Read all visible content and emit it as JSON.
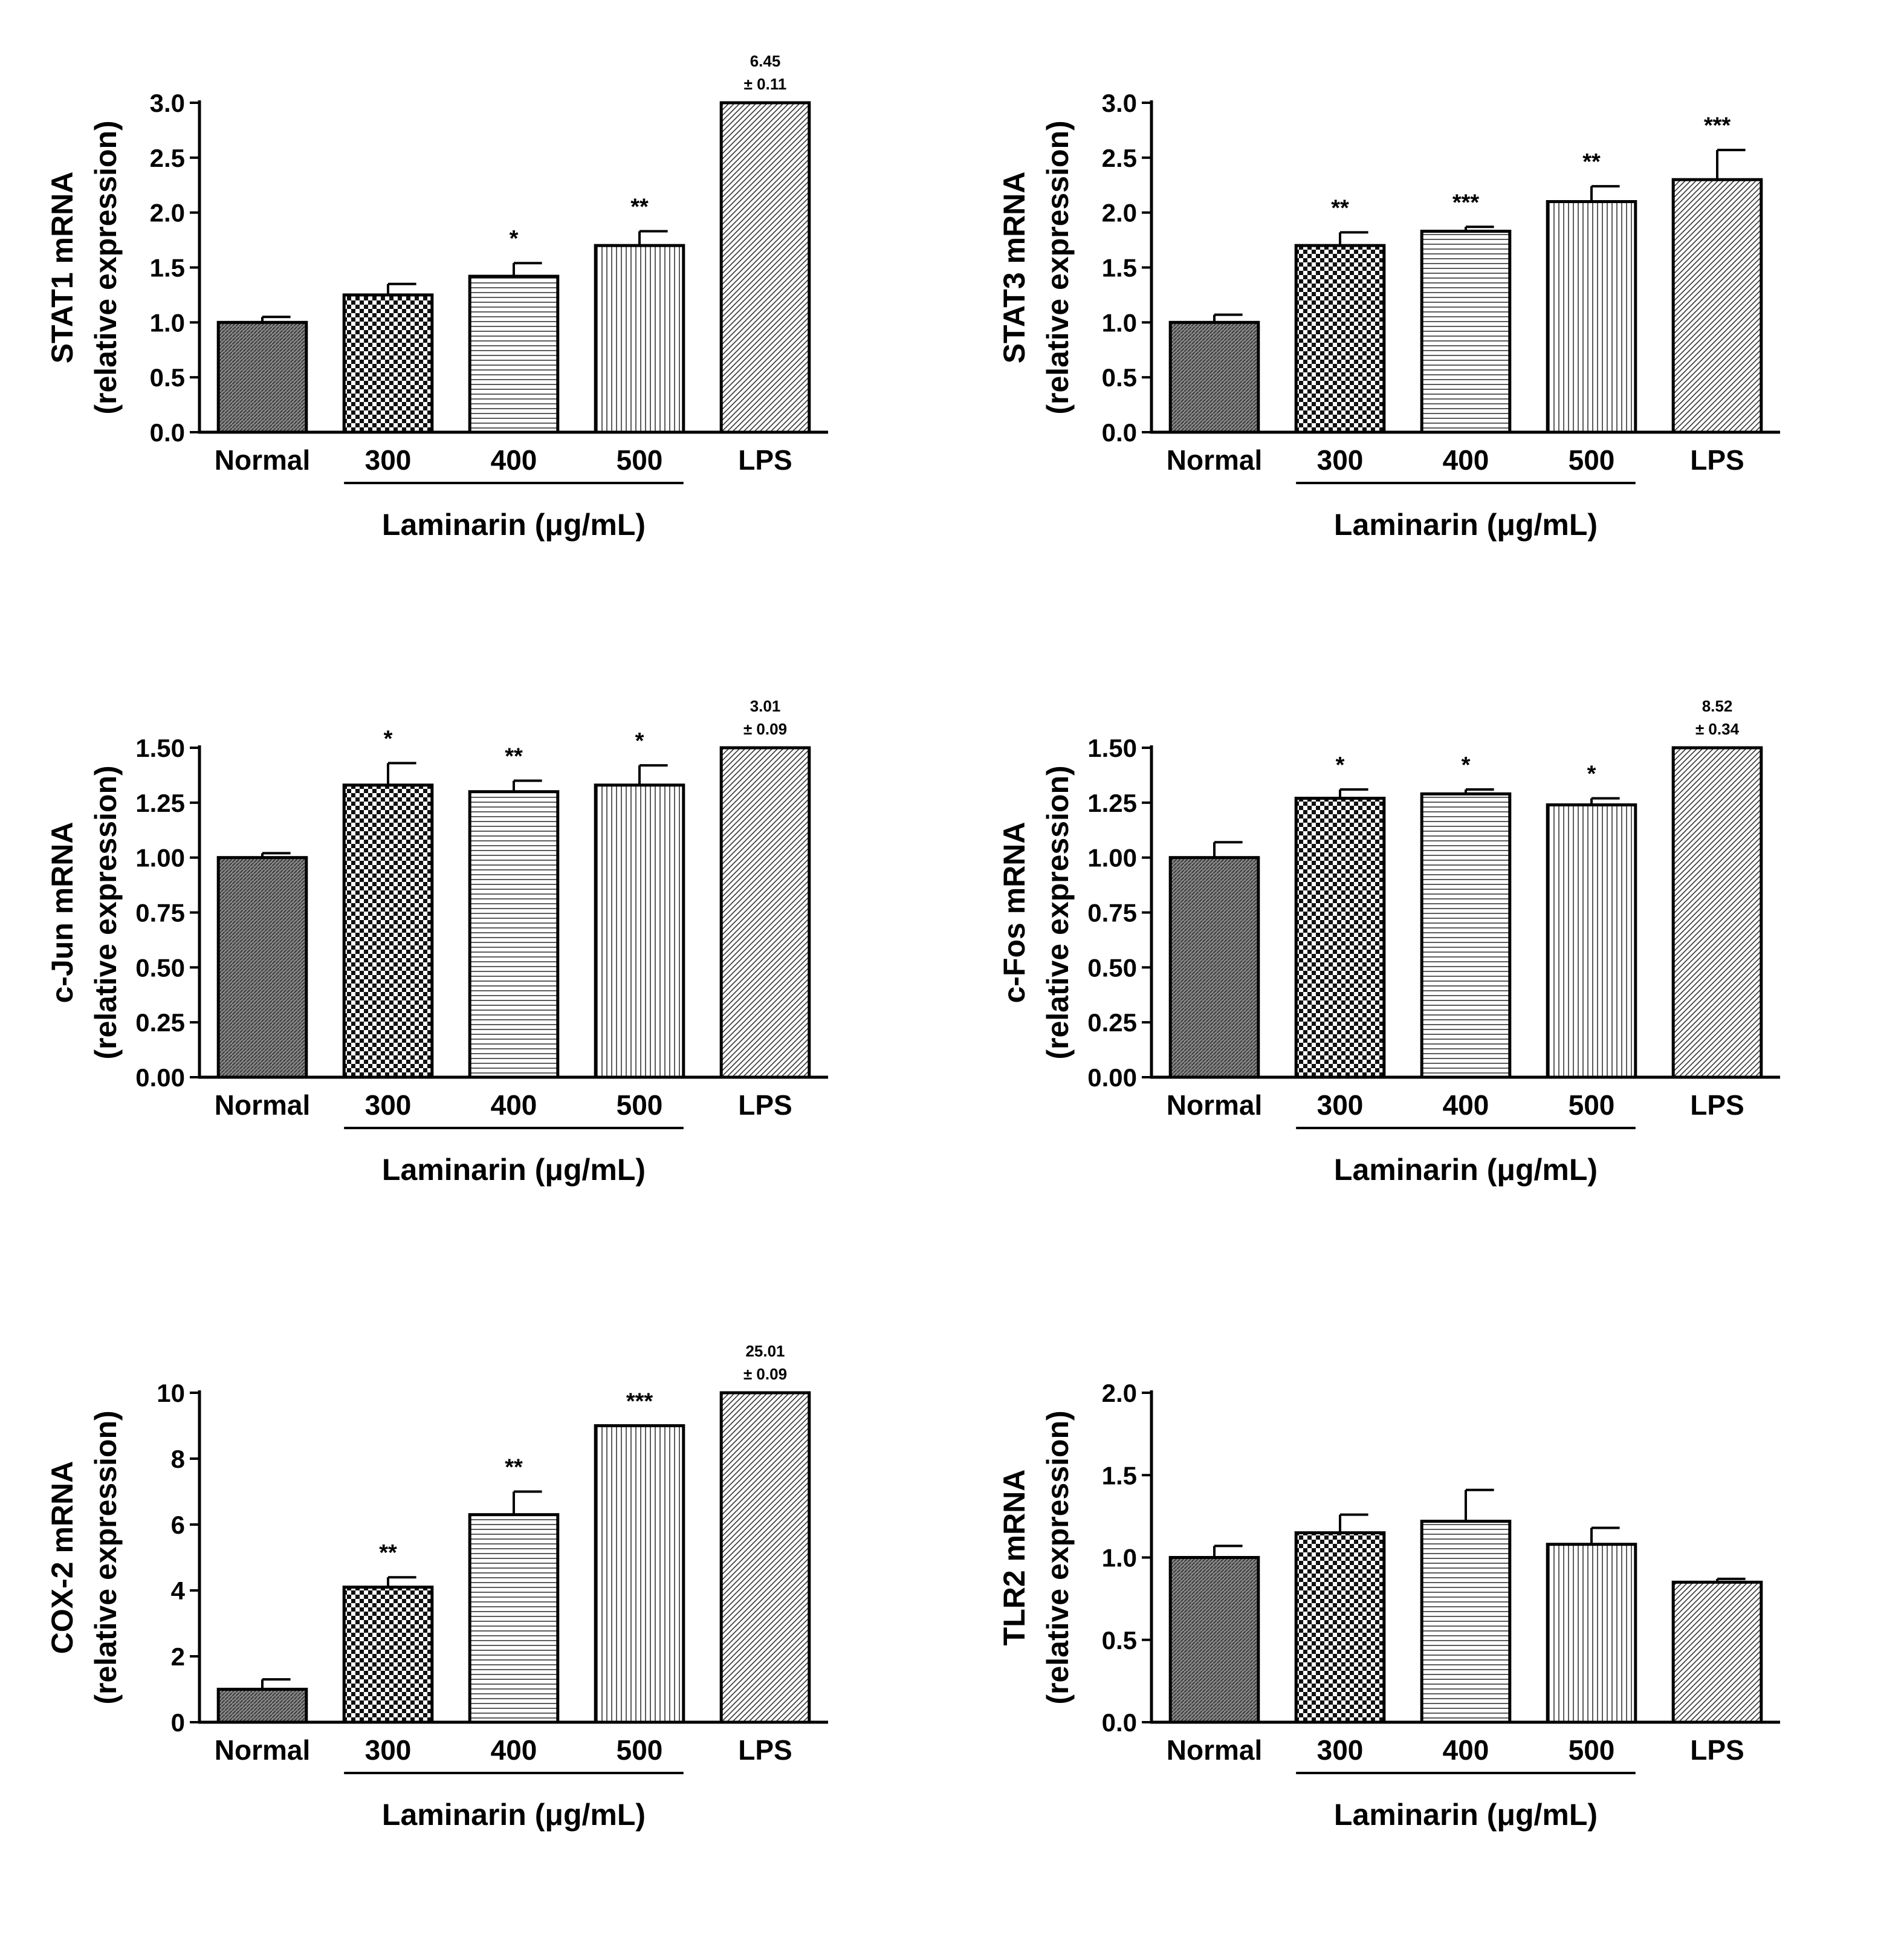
{
  "figure": {
    "x_group_label": "Laminarin (μg/mL)",
    "y_axis_sub": "(relative expression)"
  },
  "chart_data": [
    {
      "type": "bar",
      "title": "",
      "ylabel": "STAT1 mRNA",
      "ylabel_sub": "(relative expression)",
      "xlabel": "Laminarin (μg/mL)",
      "categories": [
        "Normal",
        "300",
        "400",
        "500",
        "LPS"
      ],
      "bracketed_categories": [
        "300",
        "400",
        "500"
      ],
      "values": [
        1.0,
        1.25,
        1.42,
        1.7,
        3.0
      ],
      "errors": [
        0.05,
        0.1,
        0.12,
        0.13,
        0
      ],
      "significance": [
        "",
        "",
        "*",
        "**",
        ""
      ],
      "offscale": [
        null,
        null,
        null,
        null,
        {
          "value": "6.45",
          "pm": "± 0.11"
        }
      ],
      "ylim": [
        0,
        3.0
      ],
      "yticks": [
        0.0,
        0.5,
        1.0,
        1.5,
        2.0,
        2.5,
        3.0
      ],
      "ytick_labels": [
        "0.0",
        "0.5",
        "1.0",
        "1.5",
        "2.0",
        "2.5",
        "3.0"
      ],
      "patterns": [
        "dense",
        "checker",
        "hlines",
        "vlines",
        "diag"
      ]
    },
    {
      "type": "bar",
      "title": "",
      "ylabel": "STAT3 mRNA",
      "ylabel_sub": "(relative expression)",
      "xlabel": "Laminarin (μg/mL)",
      "categories": [
        "Normal",
        "300",
        "400",
        "500",
        "LPS"
      ],
      "bracketed_categories": [
        "300",
        "400",
        "500"
      ],
      "values": [
        1.0,
        1.7,
        1.83,
        2.1,
        2.3
      ],
      "errors": [
        0.07,
        0.12,
        0.04,
        0.14,
        0.27
      ],
      "significance": [
        "",
        "**",
        "***",
        "**",
        "***"
      ],
      "offscale": [
        null,
        null,
        null,
        null,
        null
      ],
      "ylim": [
        0,
        3.0
      ],
      "yticks": [
        0.0,
        0.5,
        1.0,
        1.5,
        2.0,
        2.5,
        3.0
      ],
      "ytick_labels": [
        "0.0",
        "0.5",
        "1.0",
        "1.5",
        "2.0",
        "2.5",
        "3.0"
      ],
      "patterns": [
        "dense",
        "checker",
        "hlines",
        "vlines",
        "diag"
      ]
    },
    {
      "type": "bar",
      "title": "",
      "ylabel": "c-Jun mRNA",
      "ylabel_sub": "(relative expression)",
      "xlabel": "Laminarin (μg/mL)",
      "categories": [
        "Normal",
        "300",
        "400",
        "500",
        "LPS"
      ],
      "bracketed_categories": [
        "300",
        "400",
        "500"
      ],
      "values": [
        1.0,
        1.33,
        1.3,
        1.33,
        1.5
      ],
      "errors": [
        0.02,
        0.1,
        0.05,
        0.09,
        0
      ],
      "significance": [
        "",
        "*",
        "**",
        "*",
        ""
      ],
      "offscale": [
        null,
        null,
        null,
        null,
        {
          "value": "3.01",
          "pm": "± 0.09"
        }
      ],
      "ylim": [
        0,
        1.5
      ],
      "yticks": [
        0.0,
        0.25,
        0.5,
        0.75,
        1.0,
        1.25,
        1.5
      ],
      "ytick_labels": [
        "0.00",
        "0.25",
        "0.50",
        "0.75",
        "1.00",
        "1.25",
        "1.50"
      ],
      "patterns": [
        "dense",
        "checker",
        "hlines",
        "vlines",
        "diag"
      ]
    },
    {
      "type": "bar",
      "title": "",
      "ylabel": "c-Fos mRNA",
      "ylabel_sub": "(relative expression)",
      "xlabel": "Laminarin (μg/mL)",
      "categories": [
        "Normal",
        "300",
        "400",
        "500",
        "LPS"
      ],
      "bracketed_categories": [
        "300",
        "400",
        "500"
      ],
      "values": [
        1.0,
        1.27,
        1.29,
        1.24,
        1.5
      ],
      "errors": [
        0.07,
        0.04,
        0.02,
        0.03,
        0
      ],
      "significance": [
        "",
        "*",
        "*",
        "*",
        ""
      ],
      "offscale": [
        null,
        null,
        null,
        null,
        {
          "value": "8.52",
          "pm": "± 0.34"
        }
      ],
      "ylim": [
        0,
        1.5
      ],
      "yticks": [
        0.0,
        0.25,
        0.5,
        0.75,
        1.0,
        1.25,
        1.5
      ],
      "ytick_labels": [
        "0.00",
        "0.25",
        "0.50",
        "0.75",
        "1.00",
        "1.25",
        "1.50"
      ],
      "patterns": [
        "dense",
        "checker",
        "hlines",
        "vlines",
        "diag"
      ]
    },
    {
      "type": "bar",
      "title": "",
      "ylabel": "COX-2 mRNA",
      "ylabel_sub": "(relative expression)",
      "xlabel": "Laminarin (μg/mL)",
      "categories": [
        "Normal",
        "300",
        "400",
        "500",
        "LPS"
      ],
      "bracketed_categories": [
        "300",
        "400",
        "500"
      ],
      "values": [
        1.0,
        4.1,
        6.3,
        9.0,
        10.0
      ],
      "errors": [
        0.3,
        0.3,
        0.7,
        0,
        0
      ],
      "significance": [
        "",
        "**",
        "**",
        "***",
        ""
      ],
      "offscale": [
        null,
        null,
        null,
        null,
        {
          "value": "25.01",
          "pm": "± 0.09"
        }
      ],
      "ylim": [
        0,
        10
      ],
      "yticks": [
        0,
        2,
        4,
        6,
        8,
        10
      ],
      "ytick_labels": [
        "0",
        "2",
        "4",
        "6",
        "8",
        "10"
      ],
      "patterns": [
        "dense",
        "checker",
        "hlines",
        "vlines",
        "diag"
      ]
    },
    {
      "type": "bar",
      "title": "",
      "ylabel": "TLR2 mRNA",
      "ylabel_sub": "(relative expression)",
      "xlabel": "Laminarin (μg/mL)",
      "categories": [
        "Normal",
        "300",
        "400",
        "500",
        "LPS"
      ],
      "bracketed_categories": [
        "300",
        "400",
        "500"
      ],
      "values": [
        1.0,
        1.15,
        1.22,
        1.08,
        0.85
      ],
      "errors": [
        0.07,
        0.11,
        0.19,
        0.1,
        0.02
      ],
      "significance": [
        "",
        "",
        "",
        "",
        ""
      ],
      "offscale": [
        null,
        null,
        null,
        null,
        null
      ],
      "ylim": [
        0,
        2.0
      ],
      "yticks": [
        0.0,
        0.5,
        1.0,
        1.5,
        2.0
      ],
      "ytick_labels": [
        "0.0",
        "0.5",
        "1.0",
        "1.5",
        "2.0"
      ],
      "patterns": [
        "dense",
        "checker",
        "hlines",
        "vlines",
        "diag"
      ]
    }
  ]
}
